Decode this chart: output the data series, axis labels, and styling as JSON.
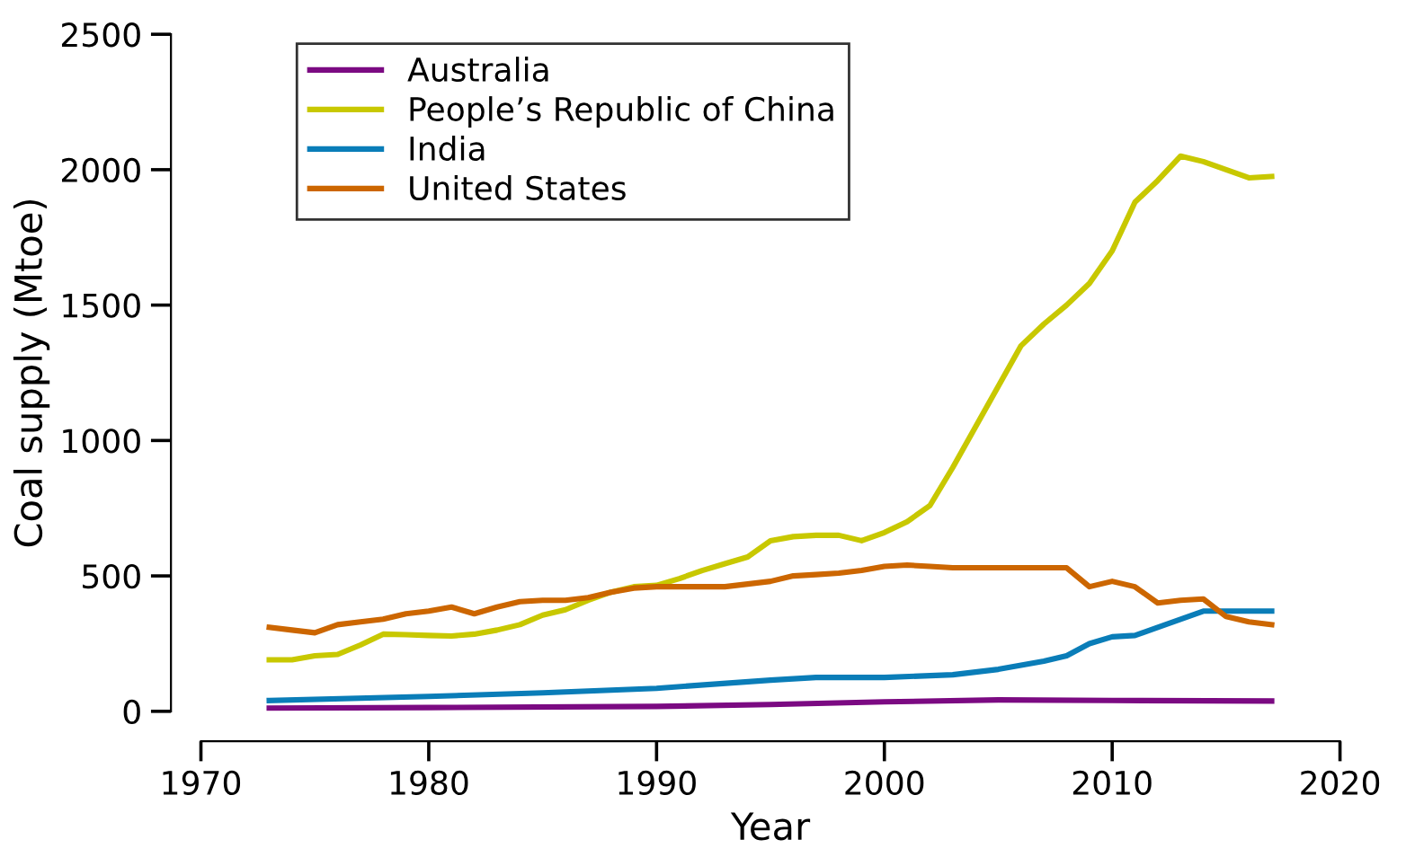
{
  "chart_data": {
    "type": "line",
    "xlabel": "Year",
    "ylabel": "Coal supply (Mtoe)",
    "xlim": [
      1970,
      2020
    ],
    "xticks": [
      1970,
      1980,
      1990,
      2000,
      2010,
      2020
    ],
    "ylim": [
      0,
      2500
    ],
    "yticks": [
      0,
      500,
      1000,
      1500,
      2000,
      2500
    ],
    "grid": false,
    "legend": "top left",
    "marker": "none",
    "line_style": "solid",
    "series": [
      {
        "name": "Australia",
        "color": "#7b0a82",
        "x": [
          1973,
          1980,
          1990,
          1995,
          2000,
          2005,
          2010,
          2017
        ],
        "values": [
          12,
          14,
          18,
          25,
          35,
          42,
          40,
          38
        ]
      },
      {
        "name": "People’s Republic of China",
        "color": "#c8c800",
        "x": [
          1973,
          1974,
          1975,
          1976,
          1977,
          1978,
          1979,
          1980,
          1981,
          1982,
          1983,
          1984,
          1985,
          1986,
          1987,
          1988,
          1989,
          1990,
          1991,
          1992,
          1993,
          1994,
          1995,
          1996,
          1997,
          1998,
          1999,
          2000,
          2001,
          2002,
          2003,
          2004,
          2005,
          2006,
          2007,
          2008,
          2009,
          2010,
          2011,
          2012,
          2013,
          2014,
          2015,
          2016,
          2017
        ],
        "values": [
          190,
          190,
          205,
          210,
          245,
          285,
          283,
          280,
          278,
          285,
          300,
          320,
          355,
          375,
          410,
          440,
          460,
          465,
          490,
          520,
          545,
          570,
          630,
          645,
          650,
          650,
          630,
          660,
          700,
          760,
          900,
          1050,
          1200,
          1350,
          1430,
          1500,
          1580,
          1700,
          1880,
          1960,
          2050,
          2030,
          2000,
          1970,
          1975
        ]
      },
      {
        "name": "India",
        "color": "#0a7db8",
        "x": [
          1973,
          1980,
          1985,
          1990,
          1995,
          1997,
          2000,
          2003,
          2005,
          2007,
          2008,
          2009,
          2010,
          2011,
          2012,
          2013,
          2014,
          2015,
          2016,
          2017
        ],
        "values": [
          40,
          55,
          68,
          85,
          115,
          125,
          125,
          135,
          155,
          185,
          205,
          250,
          275,
          280,
          310,
          340,
          370,
          370,
          370,
          370
        ]
      },
      {
        "name": "United States",
        "color": "#cc6600",
        "x": [
          1973,
          1974,
          1975,
          1976,
          1977,
          1978,
          1979,
          1980,
          1981,
          1982,
          1983,
          1984,
          1985,
          1986,
          1987,
          1988,
          1989,
          1990,
          1991,
          1992,
          1993,
          1994,
          1995,
          1996,
          1997,
          1998,
          1999,
          2000,
          2001,
          2002,
          2003,
          2004,
          2005,
          2006,
          2007,
          2008,
          2009,
          2010,
          2011,
          2012,
          2013,
          2014,
          2015,
          2016,
          2017
        ],
        "values": [
          310,
          300,
          290,
          320,
          330,
          340,
          360,
          370,
          385,
          360,
          385,
          405,
          410,
          410,
          420,
          440,
          455,
          460,
          460,
          460,
          460,
          470,
          480,
          500,
          505,
          510,
          520,
          535,
          540,
          535,
          530,
          530,
          530,
          530,
          530,
          530,
          460,
          480,
          460,
          400,
          410,
          415,
          350,
          330,
          320
        ]
      }
    ]
  }
}
